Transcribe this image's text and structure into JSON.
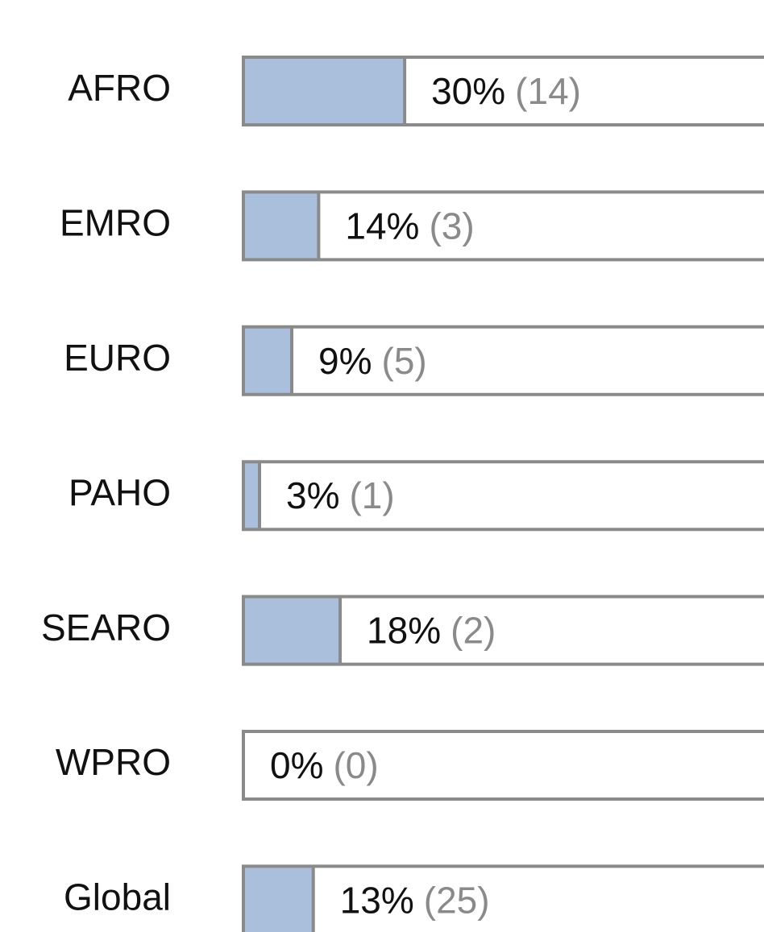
{
  "chart_data": {
    "type": "bar",
    "orientation": "horizontal",
    "categories": [
      "AFRO",
      "EMRO",
      "EURO",
      "PAHO",
      "SEARO",
      "WPRO",
      "Global"
    ],
    "values": [
      30,
      14,
      9,
      3,
      18,
      0,
      13
    ],
    "value_labels": [
      "30%",
      "14%",
      "9%",
      "3%",
      "18%",
      "0%",
      "13%"
    ],
    "counts": [
      14,
      3,
      5,
      1,
      2,
      0,
      25
    ],
    "count_labels": [
      "(14)",
      "(3)",
      "(5)",
      "(1)",
      "(2)",
      "(0)",
      "(25)"
    ],
    "color": "#a9bfdb",
    "xlim": [
      0,
      100
    ]
  }
}
